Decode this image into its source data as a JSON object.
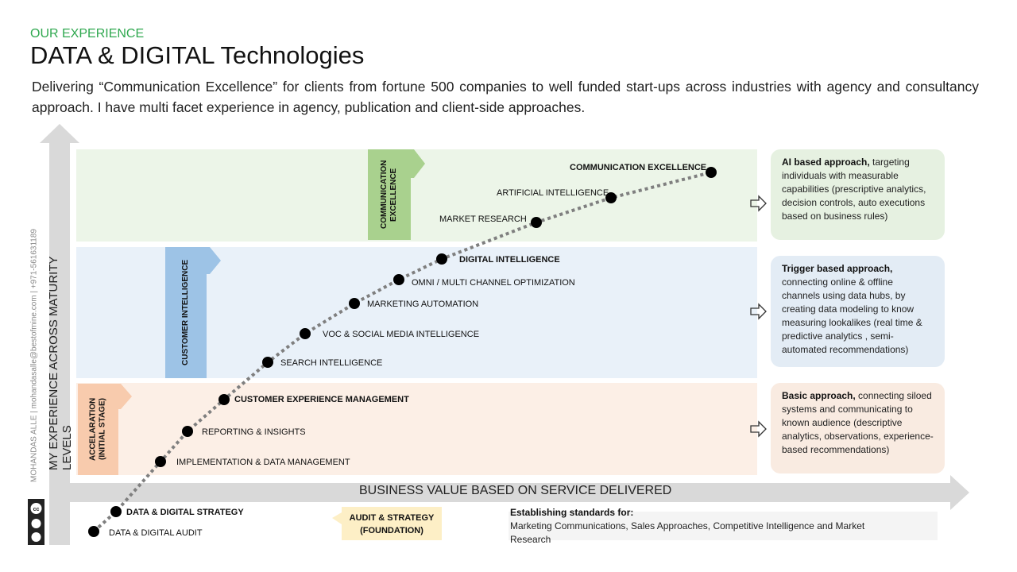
{
  "header": {
    "eyebrow": "OUR EXPERIENCE",
    "title": "DATA & DIGITAL Technologies",
    "intro": "Delivering “Communication Excellence” for clients from fortune 500 companies to well funded start-ups across industries with agency and consultancy approach. I have multi facet experience in agency, publication and client-side approaches."
  },
  "axes": {
    "y_label": "MY EXPERIENCE ACROSS MATURITY LEVELS",
    "x_label": "BUSINESS VALUE BASED ON SERVICE DELIVERED"
  },
  "credit": "MOHANDAS ALLE | mohandasalle@bestofmine.com | +971-561631189",
  "stages": {
    "top": "COMMUNICATION EXCELLENCE",
    "mid": "CUSTOMER INTELLIGENCE",
    "low": "ACCELARATION (INITIAL STAGE)",
    "foundation": "AUDIT & STRATEGY (FOUNDATION)"
  },
  "milestones": [
    {
      "label": "DATA & DIGITAL AUDIT",
      "bold": false
    },
    {
      "label": "DATA & DIGITAL STRATEGY",
      "bold": true
    },
    {
      "label": "IMPLEMENTATION & DATA MANAGEMENT",
      "bold": false
    },
    {
      "label": "REPORTING & INSIGHTS",
      "bold": false
    },
    {
      "label": "CUSTOMER EXPERIENCE MANAGEMENT",
      "bold": true
    },
    {
      "label": "SEARCH INTELLIGENCE",
      "bold": false
    },
    {
      "label": "VOC & SOCIAL MEDIA INTELLIGENCE",
      "bold": false
    },
    {
      "label": "MARKETING AUTOMATION",
      "bold": false
    },
    {
      "label": "OMNI / MULTI CHANNEL OPTIMIZATION",
      "bold": false
    },
    {
      "label": "DIGITAL INTELLIGENCE",
      "bold": true
    },
    {
      "label": "MARKET RESEARCH",
      "bold": false
    },
    {
      "label": "ARTIFICIAL INTELLIGENCE",
      "bold": false
    },
    {
      "label": "COMMUNICATION  EXCELLENCE",
      "bold": true
    }
  ],
  "cards": [
    {
      "title": "AI based approach,",
      "body": "targeting individuals with measurable capabilities (prescriptive analytics, decision controls, auto executions based on business rules)"
    },
    {
      "title": "Trigger based approach,",
      "body": "connecting online & offline channels using data hubs, by creating data modeling to know measuring lookalikes (real time & predictive analytics , semi-automated recommendations)"
    },
    {
      "title": "Basic approach,",
      "body": "connecting siloed systems and communicating to known audience (descriptive analytics, observations, experience-based recommendations)"
    }
  ],
  "standards": {
    "heading": "Establishing standards for:",
    "text": "Marketing Communications, Sales Approaches, Competitive Intelligence and Market Research"
  },
  "colors": {
    "accent_green": "#2fa84f",
    "stage_green": "#a9d18e",
    "stage_blue": "#9dc3e6",
    "stage_orange": "#f8cbad",
    "stage_yellow": "#fdefc6",
    "arrow_gray": "#d9d9d9"
  },
  "icons": [
    "creative-commons-icon",
    "arrow-right-icon"
  ]
}
